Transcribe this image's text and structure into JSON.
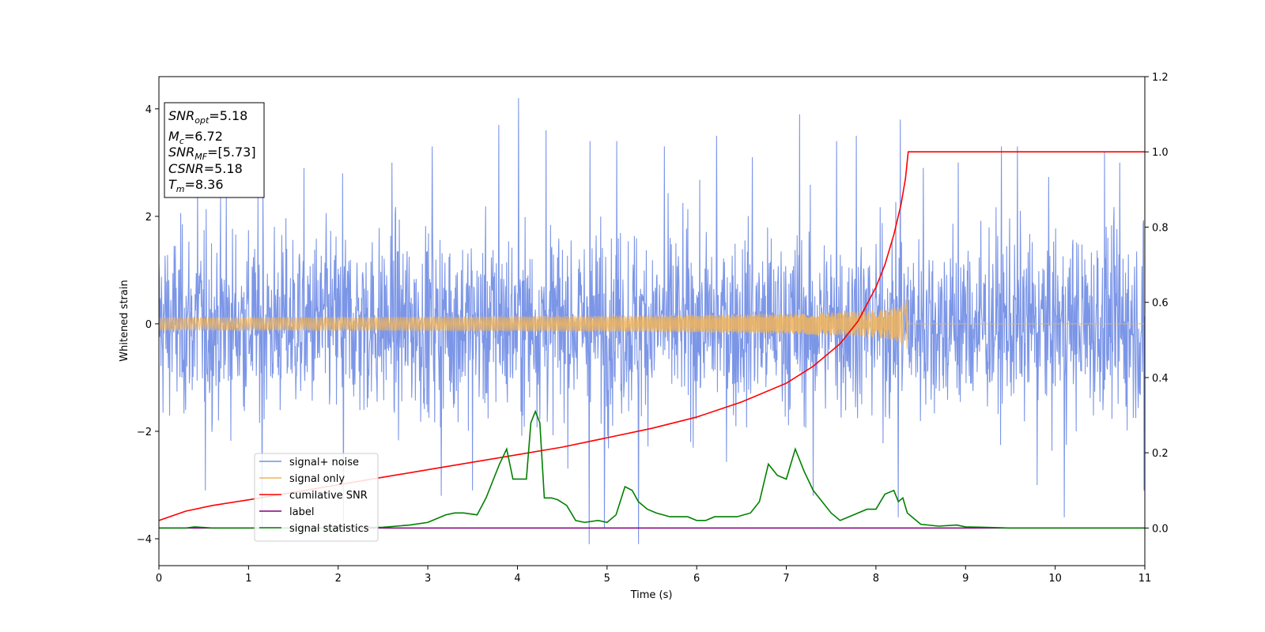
{
  "chart_data": {
    "type": "line",
    "xlabel": "Time (s)",
    "ylabel": "Whitened strain",
    "xlim": [
      0,
      11
    ],
    "ylim": [
      -4.5,
      4.6
    ],
    "y2lim": [
      -0.1,
      1.2
    ],
    "x_ticks": [
      "0",
      "1",
      "2",
      "3",
      "4",
      "5",
      "6",
      "7",
      "8",
      "9",
      "10",
      "11"
    ],
    "y_ticks": [
      "4",
      "2",
      "0",
      "−2",
      "−4"
    ],
    "y2_ticks": [
      "0.0",
      "0.2",
      "0.4",
      "0.6",
      "0.8",
      "1.0",
      "1.2"
    ],
    "grid": false,
    "legend_position": "lower-left",
    "info_box": {
      "snr_opt": {
        "base": "SNR",
        "sub": "opt",
        "value": "=5.18"
      },
      "mc": {
        "base": "M",
        "sub": "c",
        "value": "=6.72"
      },
      "snr_mf": {
        "base": "SNR",
        "sub": "MF",
        "value": "=[5.73]"
      },
      "csnr": {
        "base": "CSNR",
        "value": "=5.18"
      },
      "tm": {
        "base": "T",
        "sub": "m",
        "value": "=8.36"
      }
    },
    "series": [
      {
        "name": "signal+ noise",
        "color": "#7590e6",
        "axis": "left",
        "style": "noise",
        "noise_sigma": 0.85,
        "x_range": [
          0,
          11
        ],
        "spikes": [
          [
            0.43,
            2.7
          ],
          [
            0.75,
            2.4
          ],
          [
            1.16,
            2.6
          ],
          [
            1.62,
            2.9
          ],
          [
            2.05,
            2.8
          ],
          [
            2.6,
            3.0
          ],
          [
            3.05,
            3.3
          ],
          [
            3.5,
            3.2
          ],
          [
            3.79,
            3.7
          ],
          [
            4.01,
            4.2
          ],
          [
            4.32,
            3.6
          ],
          [
            4.81,
            3.4
          ],
          [
            5.11,
            3.4
          ],
          [
            5.35,
            3.7
          ],
          [
            5.64,
            3.3
          ],
          [
            6.22,
            3.5
          ],
          [
            6.62,
            3.1
          ],
          [
            7.15,
            3.9
          ],
          [
            7.56,
            3.4
          ],
          [
            7.78,
            3.5
          ],
          [
            8.27,
            3.8
          ],
          [
            8.53,
            2.9
          ],
          [
            8.92,
            3.0
          ],
          [
            9.4,
            3.3
          ],
          [
            9.58,
            3.3
          ],
          [
            10.55,
            3.2
          ],
          [
            10.72,
            3.0
          ],
          [
            0.52,
            -3.1
          ],
          [
            1.15,
            -3.8
          ],
          [
            2.06,
            -3.9
          ],
          [
            3.15,
            -3.2
          ],
          [
            3.5,
            -3.1
          ],
          [
            4.8,
            -4.1
          ],
          [
            4.97,
            -3.8
          ],
          [
            5.35,
            -4.1
          ],
          [
            7.3,
            -3.2
          ],
          [
            8.25,
            -3.6
          ],
          [
            9.8,
            -3.0
          ],
          [
            10.1,
            -3.6
          ],
          [
            10.99,
            -3.1
          ]
        ]
      },
      {
        "name": "signal only",
        "color": "#f0b45a",
        "axis": "left",
        "style": "chirp",
        "t_merge": 8.36,
        "amp_peak": 0.55
      },
      {
        "name": "cumilative SNR",
        "color": "#ff0000",
        "axis": "right",
        "x": [
          0,
          0.3,
          0.6,
          1,
          1.5,
          2,
          2.5,
          3,
          3.5,
          4,
          4.5,
          5,
          5.5,
          6,
          6.5,
          7,
          7.3,
          7.6,
          7.8,
          8,
          8.1,
          8.2,
          8.28,
          8.33,
          8.36,
          11
        ],
        "y": [
          0.02,
          0.045,
          0.06,
          0.075,
          0.095,
          0.115,
          0.135,
          0.155,
          0.175,
          0.195,
          0.215,
          0.24,
          0.265,
          0.295,
          0.335,
          0.385,
          0.43,
          0.49,
          0.55,
          0.64,
          0.7,
          0.78,
          0.86,
          0.93,
          1.0,
          1.0
        ]
      },
      {
        "name": "label",
        "color": "#800080",
        "axis": "right",
        "x": [
          0,
          11
        ],
        "y": [
          0,
          0
        ]
      },
      {
        "name": "signal statistics",
        "color": "#008000",
        "axis": "right",
        "x": [
          0,
          0.3,
          0.4,
          0.6,
          1,
          2,
          2.5,
          2.8,
          3.0,
          3.1,
          3.2,
          3.3,
          3.4,
          3.55,
          3.65,
          3.7,
          3.8,
          3.88,
          3.95,
          4.02,
          4.1,
          4.15,
          4.2,
          4.25,
          4.3,
          4.38,
          4.45,
          4.55,
          4.65,
          4.75,
          4.9,
          5.0,
          5.1,
          5.2,
          5.28,
          5.35,
          5.45,
          5.55,
          5.7,
          5.8,
          5.9,
          6.0,
          6.1,
          6.2,
          6.3,
          6.45,
          6.6,
          6.7,
          6.8,
          6.9,
          7.0,
          7.1,
          7.2,
          7.3,
          7.4,
          7.5,
          7.6,
          7.7,
          7.8,
          7.9,
          8.0,
          8.1,
          8.2,
          8.25,
          8.3,
          8.35,
          8.4,
          8.5,
          8.7,
          8.9,
          9.0,
          9.2,
          9.5,
          10,
          11
        ],
        "y": [
          0.0,
          0.0,
          0.003,
          0.0,
          0.0,
          0.0,
          0.002,
          0.008,
          0.015,
          0.025,
          0.035,
          0.04,
          0.04,
          0.035,
          0.08,
          0.11,
          0.17,
          0.21,
          0.13,
          0.13,
          0.13,
          0.28,
          0.31,
          0.28,
          0.08,
          0.08,
          0.075,
          0.06,
          0.02,
          0.015,
          0.02,
          0.015,
          0.035,
          0.11,
          0.1,
          0.07,
          0.05,
          0.04,
          0.03,
          0.03,
          0.03,
          0.02,
          0.02,
          0.03,
          0.03,
          0.03,
          0.04,
          0.07,
          0.17,
          0.14,
          0.13,
          0.21,
          0.15,
          0.1,
          0.07,
          0.04,
          0.02,
          0.03,
          0.04,
          0.05,
          0.05,
          0.09,
          0.1,
          0.07,
          0.08,
          0.04,
          0.03,
          0.01,
          0.005,
          0.008,
          0.003,
          0.002,
          0.0,
          0.0,
          0.0
        ]
      }
    ]
  }
}
